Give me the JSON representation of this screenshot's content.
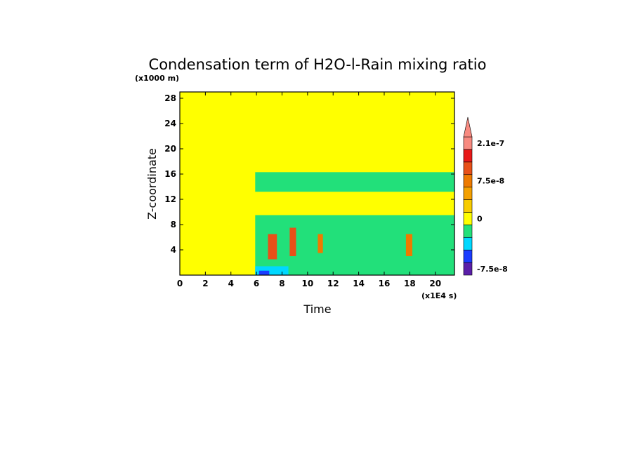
{
  "chart_data": {
    "type": "heatmap",
    "title": "Condensation term of H2O-l-Rain mixing ratio",
    "xlabel": "Time",
    "ylabel": "Z-coordinate",
    "x_unit_label": "(x1E4 s)",
    "y_unit_label": "(x1000 m)",
    "xlim": [
      0,
      21.5
    ],
    "ylim": [
      0,
      29
    ],
    "x_ticks": [
      0,
      2,
      4,
      6,
      8,
      10,
      12,
      14,
      16,
      18,
      20
    ],
    "y_ticks": [
      4,
      8,
      12,
      16,
      20,
      24,
      28
    ],
    "colorbar": {
      "levels_colors": [
        "#5a1fa8",
        "#1a3cff",
        "#00d8ff",
        "#22e07a",
        "#ffff00",
        "#f8cc00",
        "#f4a000",
        "#ee7a00",
        "#e85018",
        "#e81818",
        "#f88a80"
      ],
      "labels": [
        {
          "value": "-7.5e-8",
          "level": 0
        },
        {
          "value": "0",
          "level": 4
        },
        {
          "value": "7.5e-8",
          "level": 7
        },
        {
          "value": "2.1e-7",
          "level": 10
        }
      ]
    },
    "background_color": "#ffff00",
    "regions": [
      {
        "type": "upper-band",
        "x": [
          5.9,
          21.5
        ],
        "y": [
          13.2,
          16.3
        ],
        "color": "#22e07a"
      },
      {
        "type": "lower-layer",
        "x": [
          5.9,
          21.5
        ],
        "y": [
          0,
          9.5
        ],
        "color": "#22e07a"
      },
      {
        "type": "near-surface",
        "x": [
          5.9,
          8.5
        ],
        "y": [
          0,
          1.4
        ],
        "color": "#00d8ff"
      },
      {
        "type": "near-surface",
        "x": [
          6.2,
          7.0
        ],
        "y": [
          0,
          0.7
        ],
        "color": "#1a3cff"
      },
      {
        "type": "plume",
        "x": [
          6.9,
          7.6
        ],
        "y": [
          2.5,
          6.5
        ],
        "color": "#e85018"
      },
      {
        "type": "plume",
        "x": [
          8.6,
          9.1
        ],
        "y": [
          3.0,
          7.5
        ],
        "color": "#e85018"
      },
      {
        "type": "plume",
        "x": [
          10.8,
          11.2
        ],
        "y": [
          3.5,
          6.5
        ],
        "color": "#ee7a00"
      },
      {
        "type": "plume",
        "x": [
          17.7,
          18.2
        ],
        "y": [
          3.0,
          6.5
        ],
        "color": "#ee7a00"
      }
    ]
  }
}
